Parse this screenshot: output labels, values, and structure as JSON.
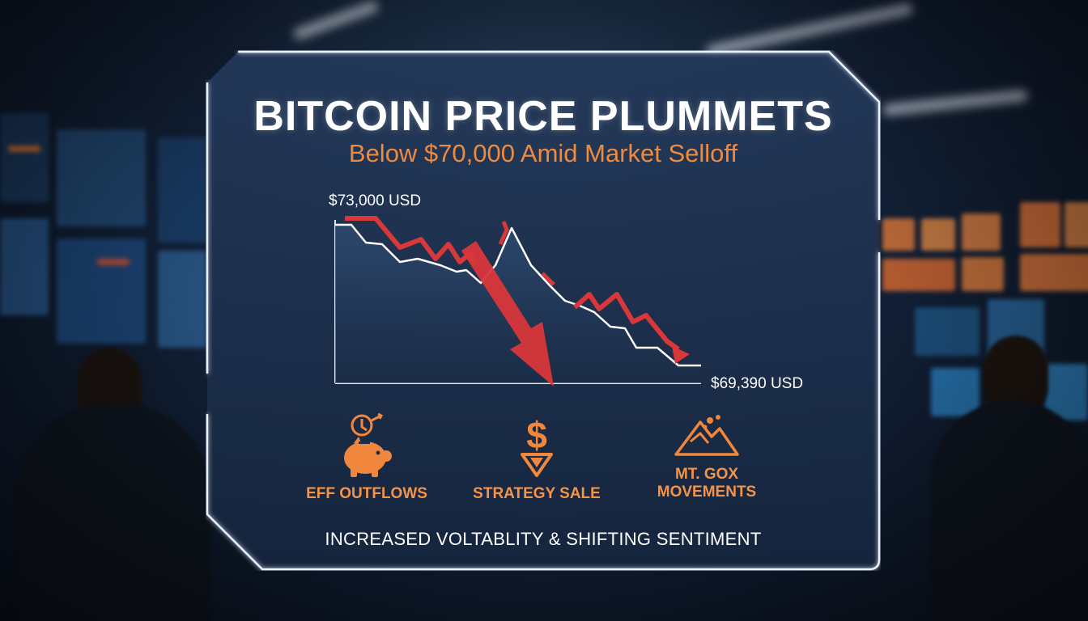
{
  "headline": {
    "title": "BITCOIN PRICE PLUMMETS",
    "subtitle": "Below $70,000 Amid Market Selloff"
  },
  "price_chart": {
    "start_label": "$73,000 USD",
    "end_label": "$69,390 USD"
  },
  "factors": [
    {
      "icon": "piggy-bank-icon",
      "label": "EFF OUTFLOWS"
    },
    {
      "icon": "dollar-down-arrow-icon",
      "label": "STRATEGY SALE"
    },
    {
      "icon": "mountain-icon",
      "label": "MT. GOX\nMOVEMENTS"
    }
  ],
  "tagline": "INCREASED VOLTABLITY & SHIFTING SENTIMENT",
  "colors": {
    "accent_orange": "#f08a3e",
    "arrow_red": "#d9373a",
    "panel_blue": "#1c3150",
    "frame_white": "#e8f0ff"
  }
}
